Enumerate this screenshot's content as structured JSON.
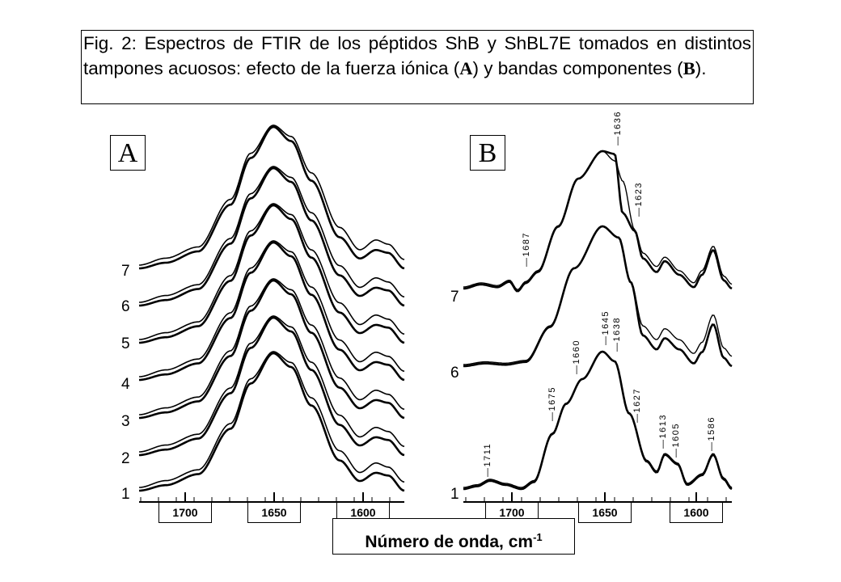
{
  "caption": {
    "part1": "Fig. 2: Espectros de FTIR de los péptidos ShB y ShBL7E tomados en distintos tampones acuosos: efecto de la fuerza iónica (",
    "panel_a": "A",
    "part2": ") y bandas componentes (",
    "panel_b": "B",
    "part3": ")."
  },
  "x_axis_label": "Número de onda, cm",
  "x_axis_unit_exponent": "-1",
  "panel_a": {
    "tag": "A",
    "x_tick_labels": [
      "1700",
      "1650",
      "1600"
    ],
    "trace_labels": [
      "1",
      "2",
      "3",
      "4",
      "5",
      "6",
      "7"
    ]
  },
  "panel_b": {
    "tag": "B",
    "x_tick_labels": [
      "1700",
      "1650",
      "1600"
    ],
    "trace_labels": [
      "1",
      "6",
      "7"
    ],
    "band_labels": [
      "1711",
      "1675",
      "1660",
      "1645",
      "1638",
      "1627",
      "1613",
      "1605",
      "1586",
      "1687",
      "1623",
      "1636"
    ]
  },
  "chart_data": [
    {
      "type": "line",
      "panel": "A",
      "x_tick_labels": [
        "1700",
        "1650",
        "1600"
      ],
      "xlim": [
        1725,
        1575
      ],
      "series": [
        {
          "name": "1",
          "x": [
            1725,
            1700,
            1680,
            1665,
            1652,
            1640,
            1625,
            1615,
            1607,
            1600,
            1590,
            1580,
            1575
          ],
          "y": [
            0.0,
            0.12,
            0.35,
            0.8,
            1.0,
            0.85,
            0.42,
            0.2,
            0.12,
            0.1,
            0.15,
            0.06,
            0.0
          ]
        },
        {
          "name": "2"
        },
        {
          "name": "3"
        },
        {
          "name": "4"
        },
        {
          "name": "5"
        },
        {
          "name": "6"
        },
        {
          "name": "7"
        }
      ]
    },
    {
      "type": "line",
      "panel": "B",
      "x_tick_labels": [
        "1700",
        "1650",
        "1600"
      ],
      "xlim": [
        1725,
        1575
      ],
      "series": [
        {
          "name": "1",
          "x": [
            1725,
            1711,
            1700,
            1690,
            1675,
            1660,
            1650,
            1645,
            1638,
            1627,
            1618,
            1613,
            1605,
            1597,
            1586,
            1578,
            1575
          ],
          "y": [
            0.0,
            0.05,
            0.03,
            0.08,
            0.55,
            0.85,
            1.0,
            0.97,
            0.9,
            0.5,
            0.15,
            0.25,
            0.18,
            0.05,
            0.25,
            0.08,
            0.0
          ]
        },
        {
          "name": "6"
        },
        {
          "name": "7"
        }
      ],
      "band_labels": [
        "1711",
        "1675",
        "1660",
        "1645",
        "1638",
        "1627",
        "1613",
        "1605",
        "1586",
        "1687",
        "1623",
        "1636"
      ]
    }
  ]
}
